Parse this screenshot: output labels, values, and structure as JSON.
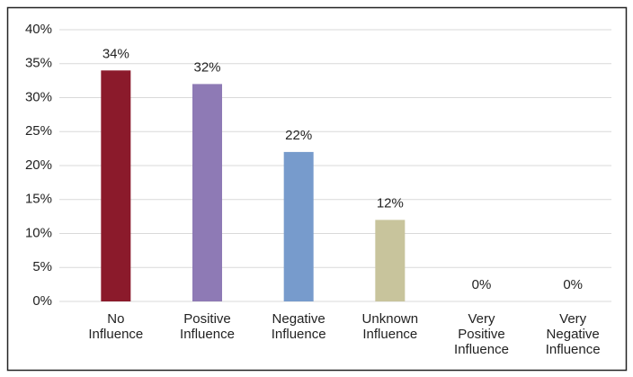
{
  "chart_data": {
    "type": "bar",
    "categories": [
      "No Influence",
      "Positive Influence",
      "Negative Influence",
      "Unknown Influence",
      "Very Positive Influence",
      "Very Negative Influence"
    ],
    "values": [
      34,
      32,
      22,
      12,
      0,
      0
    ],
    "value_labels": [
      "34%",
      "32%",
      "22%",
      "12%",
      "0%",
      "0%"
    ],
    "colors": [
      "#8b1a2b",
      "#8e7ab5",
      "#779bcc",
      "#c8c49c",
      "#c0c0c0",
      "#c0c0c0"
    ],
    "ylim": [
      0,
      40
    ],
    "yticks": [
      {
        "value": 0,
        "label": "0%"
      },
      {
        "value": 5,
        "label": "5%"
      },
      {
        "value": 10,
        "label": "10%"
      },
      {
        "value": 15,
        "label": "15%"
      },
      {
        "value": 20,
        "label": "20%"
      },
      {
        "value": 25,
        "label": "25%"
      },
      {
        "value": 30,
        "label": "30%"
      },
      {
        "value": 35,
        "label": "35%"
      },
      {
        "value": 40,
        "label": "40%"
      }
    ],
    "grid": true
  }
}
